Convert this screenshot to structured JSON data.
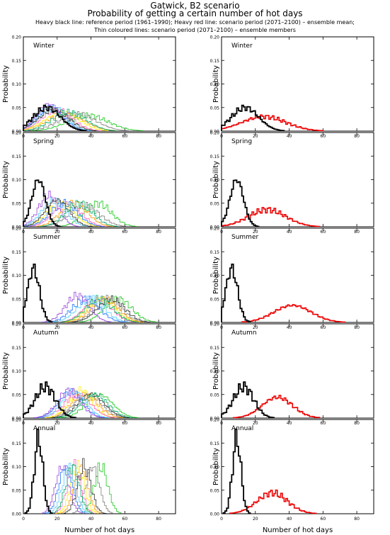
{
  "header": {
    "title": "Gatwick, B2 scenario",
    "subtitle": "Probability of getting a certain number of hot days",
    "legend_line1": "Heavy black line: reference period (1961–1990); Heavy red line: scenario period (2071–2100) – ensemble mean;",
    "legend_line2": "Thin coloured lines: scenario period (2071–2100) – ensemble members"
  },
  "chart_data": {
    "type": "line",
    "layout": "5 rows x 2 columns of step histograms; left column = reference + ensemble members, right column = reference + ensemble mean",
    "xlabel": "Number of hot days",
    "ylabel": "Probability",
    "xlim": [
      0,
      90
    ],
    "ylim": [
      0,
      0.2
    ],
    "xticks": [
      "0",
      "20",
      "40",
      "60",
      "80"
    ],
    "yticks": [
      "0.00",
      "0.05",
      "0.10",
      "0.15",
      "0.20"
    ],
    "colors": {
      "reference": "#000000",
      "ensemble_mean": "#ee0000",
      "members": [
        "#1fc81f",
        "#7f7f7f",
        "#ff9900",
        "#ffee00",
        "#ff66bb",
        "#55ccff",
        "#2277ff",
        "#9944dd",
        "#333333",
        "#00aa66"
      ]
    },
    "panels": [
      {
        "season": "Winter",
        "reference": {
          "mean": 14,
          "sd": 8
        },
        "ensemble_mean": {
          "mean": 25,
          "sd": 13
        },
        "members": [
          {
            "mean": 38,
            "sd": 12
          },
          {
            "mean": 32,
            "sd": 11
          },
          {
            "mean": 25,
            "sd": 11
          },
          {
            "mean": 23,
            "sd": 10
          },
          {
            "mean": 20,
            "sd": 9
          },
          {
            "mean": 17,
            "sd": 8
          },
          {
            "mean": 16,
            "sd": 8
          },
          {
            "mean": 15,
            "sd": 7
          },
          {
            "mean": 18,
            "sd": 9
          },
          {
            "mean": 27,
            "sd": 10
          }
        ]
      },
      {
        "season": "Spring",
        "reference": {
          "mean": 9,
          "sd": 4
        },
        "ensemble_mean": {
          "mean": 27,
          "sd": 11
        },
        "members": [
          {
            "mean": 44,
            "sd": 8
          },
          {
            "mean": 36,
            "sd": 9
          },
          {
            "mean": 30,
            "sd": 8
          },
          {
            "mean": 22,
            "sd": 8
          },
          {
            "mean": 26,
            "sd": 8
          },
          {
            "mean": 18,
            "sd": 7
          },
          {
            "mean": 24,
            "sd": 8
          },
          {
            "mean": 15,
            "sd": 6
          },
          {
            "mean": 20,
            "sd": 7
          },
          {
            "mean": 33,
            "sd": 8
          }
        ]
      },
      {
        "season": "Summer",
        "reference": {
          "mean": 6,
          "sd": 3.5
        },
        "ensemble_mean": {
          "mean": 42,
          "sd": 11
        },
        "members": [
          {
            "mean": 56,
            "sd": 8
          },
          {
            "mean": 50,
            "sd": 8
          },
          {
            "mean": 48,
            "sd": 8
          },
          {
            "mean": 46,
            "sd": 8
          },
          {
            "mean": 44,
            "sd": 8
          },
          {
            "mean": 40,
            "sd": 8
          },
          {
            "mean": 37,
            "sd": 8
          },
          {
            "mean": 32,
            "sd": 7
          },
          {
            "mean": 52,
            "sd": 8
          },
          {
            "mean": 45,
            "sd": 8
          }
        ]
      },
      {
        "season": "Autumn",
        "reference": {
          "mean": 13,
          "sd": 6
        },
        "ensemble_mean": {
          "mean": 33,
          "sd": 9
        },
        "members": [
          {
            "mean": 45,
            "sd": 8
          },
          {
            "mean": 38,
            "sd": 8
          },
          {
            "mean": 36,
            "sd": 8
          },
          {
            "mean": 34,
            "sd": 7
          },
          {
            "mean": 32,
            "sd": 8
          },
          {
            "mean": 30,
            "sd": 7
          },
          {
            "mean": 28,
            "sd": 7
          },
          {
            "mean": 27,
            "sd": 7
          },
          {
            "mean": 40,
            "sd": 8
          },
          {
            "mean": 42,
            "sd": 8
          }
        ]
      },
      {
        "season": "Annual",
        "reference": {
          "mean": 9,
          "sd": 2.5
        },
        "ensemble_mean": {
          "mean": 30,
          "sd": 9
        },
        "members": [
          {
            "mean": 46,
            "sd": 4
          },
          {
            "mean": 41,
            "sd": 4
          },
          {
            "mean": 34,
            "sd": 4
          },
          {
            "mean": 32,
            "sd": 4
          },
          {
            "mean": 30,
            "sd": 4
          },
          {
            "mean": 27,
            "sd": 4
          },
          {
            "mean": 25,
            "sd": 4
          },
          {
            "mean": 23,
            "sd": 4
          },
          {
            "mean": 36,
            "sd": 4
          },
          {
            "mean": 29,
            "sd": 4
          }
        ]
      }
    ]
  }
}
